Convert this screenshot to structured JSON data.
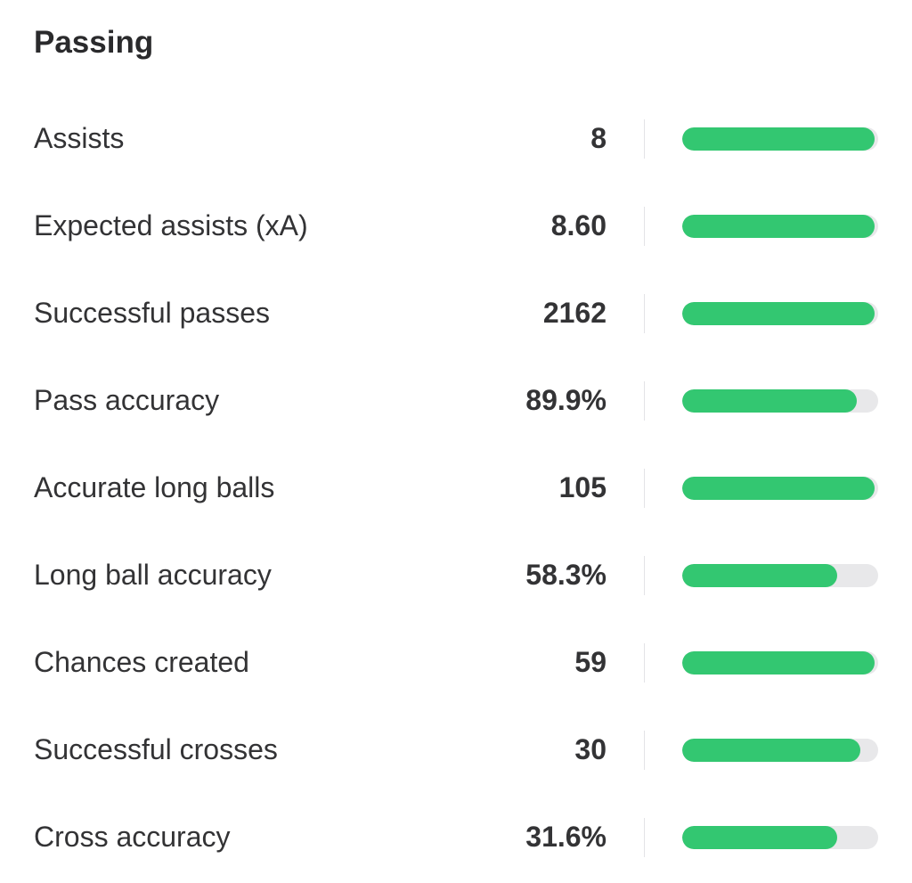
{
  "section": {
    "title": "Passing"
  },
  "colors": {
    "bar_fill": "#33c771",
    "bar_track": "#e8e8ea",
    "divider": "#e3e3e6"
  },
  "stats": [
    {
      "label": "Assists",
      "value": "8",
      "bar_fraction": 0.98
    },
    {
      "label": "Expected assists (xA)",
      "value": "8.60",
      "bar_fraction": 0.98
    },
    {
      "label": "Successful passes",
      "value": "2162",
      "bar_fraction": 0.98
    },
    {
      "label": "Pass accuracy",
      "value": "89.9%",
      "bar_fraction": 0.89
    },
    {
      "label": "Accurate long balls",
      "value": "105",
      "bar_fraction": 0.98
    },
    {
      "label": "Long ball accuracy",
      "value": "58.3%",
      "bar_fraction": 0.79
    },
    {
      "label": "Chances created",
      "value": "59",
      "bar_fraction": 0.98
    },
    {
      "label": "Successful crosses",
      "value": "30",
      "bar_fraction": 0.91
    },
    {
      "label": "Cross accuracy",
      "value": "31.6%",
      "bar_fraction": 0.79
    }
  ]
}
